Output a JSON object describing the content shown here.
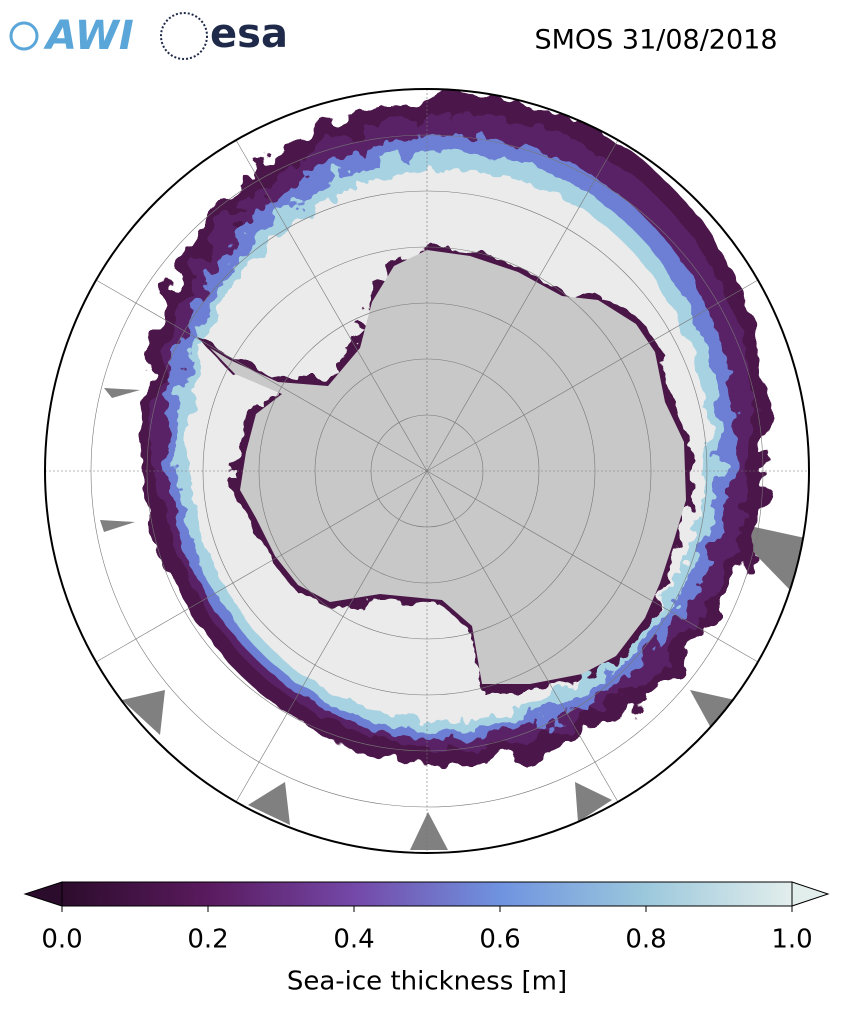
{
  "header": {
    "title": "SMOS 31/08/2018",
    "logos": [
      "AWI",
      "esa"
    ]
  },
  "colorbar": {
    "label": "Sea-ice thickness [m]",
    "lim": [
      0,
      1
    ],
    "ticks": [
      {
        "value": 0,
        "label": "0.0"
      },
      {
        "value": 0.2,
        "label": "0.2"
      },
      {
        "value": 0.4,
        "label": "0.4"
      },
      {
        "value": 0.6,
        "label": "0.6"
      },
      {
        "value": 0.8,
        "label": "0.8"
      },
      {
        "value": 1,
        "label": "1.0"
      }
    ]
  }
}
